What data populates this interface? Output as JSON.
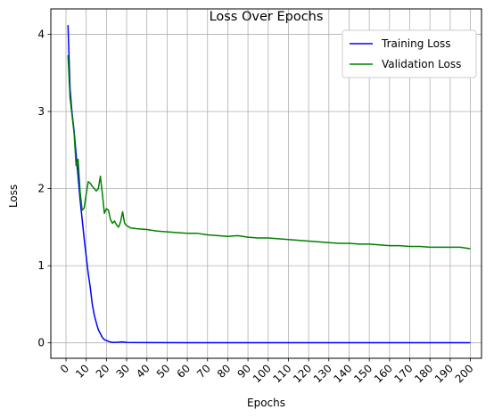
{
  "chart_data": {
    "type": "line",
    "title": "Loss Over Epochs",
    "xlabel": "Epochs",
    "ylabel": "Loss",
    "xlim": [
      -7.5,
      205.5
    ],
    "ylim": [
      -0.2,
      4.33
    ],
    "x_ticks": [
      0,
      10,
      20,
      30,
      40,
      50,
      60,
      70,
      80,
      90,
      100,
      110,
      120,
      130,
      140,
      150,
      160,
      170,
      180,
      190,
      200
    ],
    "y_ticks": [
      0,
      1,
      2,
      3,
      4
    ],
    "grid": true,
    "legend_position": "top-right",
    "series": [
      {
        "name": "Training Loss",
        "color": "#0000ff",
        "points": [
          [
            1,
            4.12
          ],
          [
            2,
            3.3
          ],
          [
            3,
            2.98
          ],
          [
            4,
            2.75
          ],
          [
            5,
            2.45
          ],
          [
            6,
            2.15
          ],
          [
            7,
            1.85
          ],
          [
            8,
            1.6
          ],
          [
            9,
            1.35
          ],
          [
            10,
            1.12
          ],
          [
            11,
            0.9
          ],
          [
            12,
            0.72
          ],
          [
            13,
            0.5
          ],
          [
            14,
            0.36
          ],
          [
            15,
            0.26
          ],
          [
            16,
            0.17
          ],
          [
            17,
            0.12
          ],
          [
            18,
            0.07
          ],
          [
            19,
            0.04
          ],
          [
            20,
            0.03
          ],
          [
            21,
            0.02
          ],
          [
            22,
            0.01
          ],
          [
            24,
            0.005
          ],
          [
            28,
            0.012
          ],
          [
            30,
            0.005
          ],
          [
            40,
            0.003
          ],
          [
            60,
            0.002
          ],
          [
            100,
            0.002
          ],
          [
            150,
            0.002
          ],
          [
            200,
            0.002
          ]
        ]
      },
      {
        "name": "Validation Loss",
        "color": "#008000",
        "points": [
          [
            1,
            3.73
          ],
          [
            2,
            3.18
          ],
          [
            3,
            2.95
          ],
          [
            4,
            2.72
          ],
          [
            5,
            2.3
          ],
          [
            6,
            2.38
          ],
          [
            7,
            1.95
          ],
          [
            8,
            1.72
          ],
          [
            9,
            1.75
          ],
          [
            10,
            1.93
          ],
          [
            11,
            2.09
          ],
          [
            12,
            2.07
          ],
          [
            13,
            2.03
          ],
          [
            14,
            2.0
          ],
          [
            15,
            1.97
          ],
          [
            16,
            2.0
          ],
          [
            17,
            2.16
          ],
          [
            18,
            1.93
          ],
          [
            19,
            1.68
          ],
          [
            20,
            1.74
          ],
          [
            21,
            1.72
          ],
          [
            22,
            1.6
          ],
          [
            23,
            1.55
          ],
          [
            24,
            1.58
          ],
          [
            25,
            1.53
          ],
          [
            26,
            1.5
          ],
          [
            27,
            1.57
          ],
          [
            28,
            1.7
          ],
          [
            29,
            1.55
          ],
          [
            30,
            1.52
          ],
          [
            32,
            1.49
          ],
          [
            35,
            1.48
          ],
          [
            40,
            1.47
          ],
          [
            45,
            1.45
          ],
          [
            50,
            1.44
          ],
          [
            55,
            1.43
          ],
          [
            60,
            1.42
          ],
          [
            65,
            1.42
          ],
          [
            70,
            1.4
          ],
          [
            75,
            1.39
          ],
          [
            80,
            1.38
          ],
          [
            85,
            1.39
          ],
          [
            90,
            1.37
          ],
          [
            95,
            1.36
          ],
          [
            100,
            1.36
          ],
          [
            105,
            1.35
          ],
          [
            110,
            1.34
          ],
          [
            115,
            1.33
          ],
          [
            120,
            1.32
          ],
          [
            125,
            1.31
          ],
          [
            130,
            1.3
          ],
          [
            135,
            1.29
          ],
          [
            140,
            1.29
          ],
          [
            145,
            1.28
          ],
          [
            150,
            1.28
          ],
          [
            155,
            1.27
          ],
          [
            160,
            1.26
          ],
          [
            165,
            1.26
          ],
          [
            170,
            1.25
          ],
          [
            175,
            1.25
          ],
          [
            180,
            1.24
          ],
          [
            185,
            1.24
          ],
          [
            190,
            1.24
          ],
          [
            195,
            1.24
          ],
          [
            200,
            1.22
          ]
        ]
      }
    ]
  }
}
